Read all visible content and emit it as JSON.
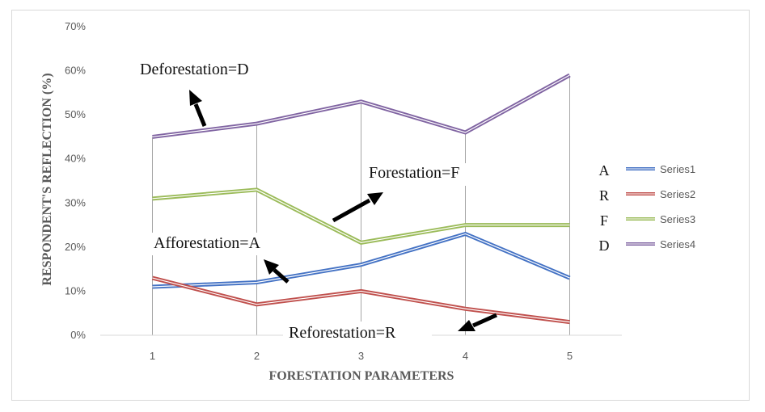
{
  "chart_data": {
    "type": "line",
    "xlabel": "FORESTATION PARAMETERS",
    "ylabel": "RESPONDENT'S REFLECTION (%)",
    "x": [
      1,
      2,
      3,
      4,
      5
    ],
    "ylim": [
      0,
      70
    ],
    "yticks": [
      "0%",
      "10%",
      "20%",
      "30%",
      "40%",
      "50%",
      "60%",
      "70%"
    ],
    "grid": false,
    "legend_position": "right",
    "series": [
      {
        "name": "Series1",
        "letter": "A",
        "color": "#4472c4",
        "values": [
          11,
          12,
          16,
          23,
          13
        ]
      },
      {
        "name": "Series2",
        "letter": "R",
        "color": "#c0504d",
        "values": [
          13,
          7,
          10,
          6,
          3
        ]
      },
      {
        "name": "Series3",
        "letter": "F",
        "color": "#9bbb59",
        "values": [
          31,
          33,
          21,
          25,
          25
        ]
      },
      {
        "name": "Series4",
        "letter": "D",
        "color": "#8064a2",
        "values": [
          45,
          48,
          53,
          46,
          59
        ]
      }
    ],
    "annotations": [
      {
        "text": "Deforestation=D"
      },
      {
        "text": "Forestation=F"
      },
      {
        "text": "Afforestation=A"
      },
      {
        "text": "Reforestation=R"
      }
    ]
  }
}
